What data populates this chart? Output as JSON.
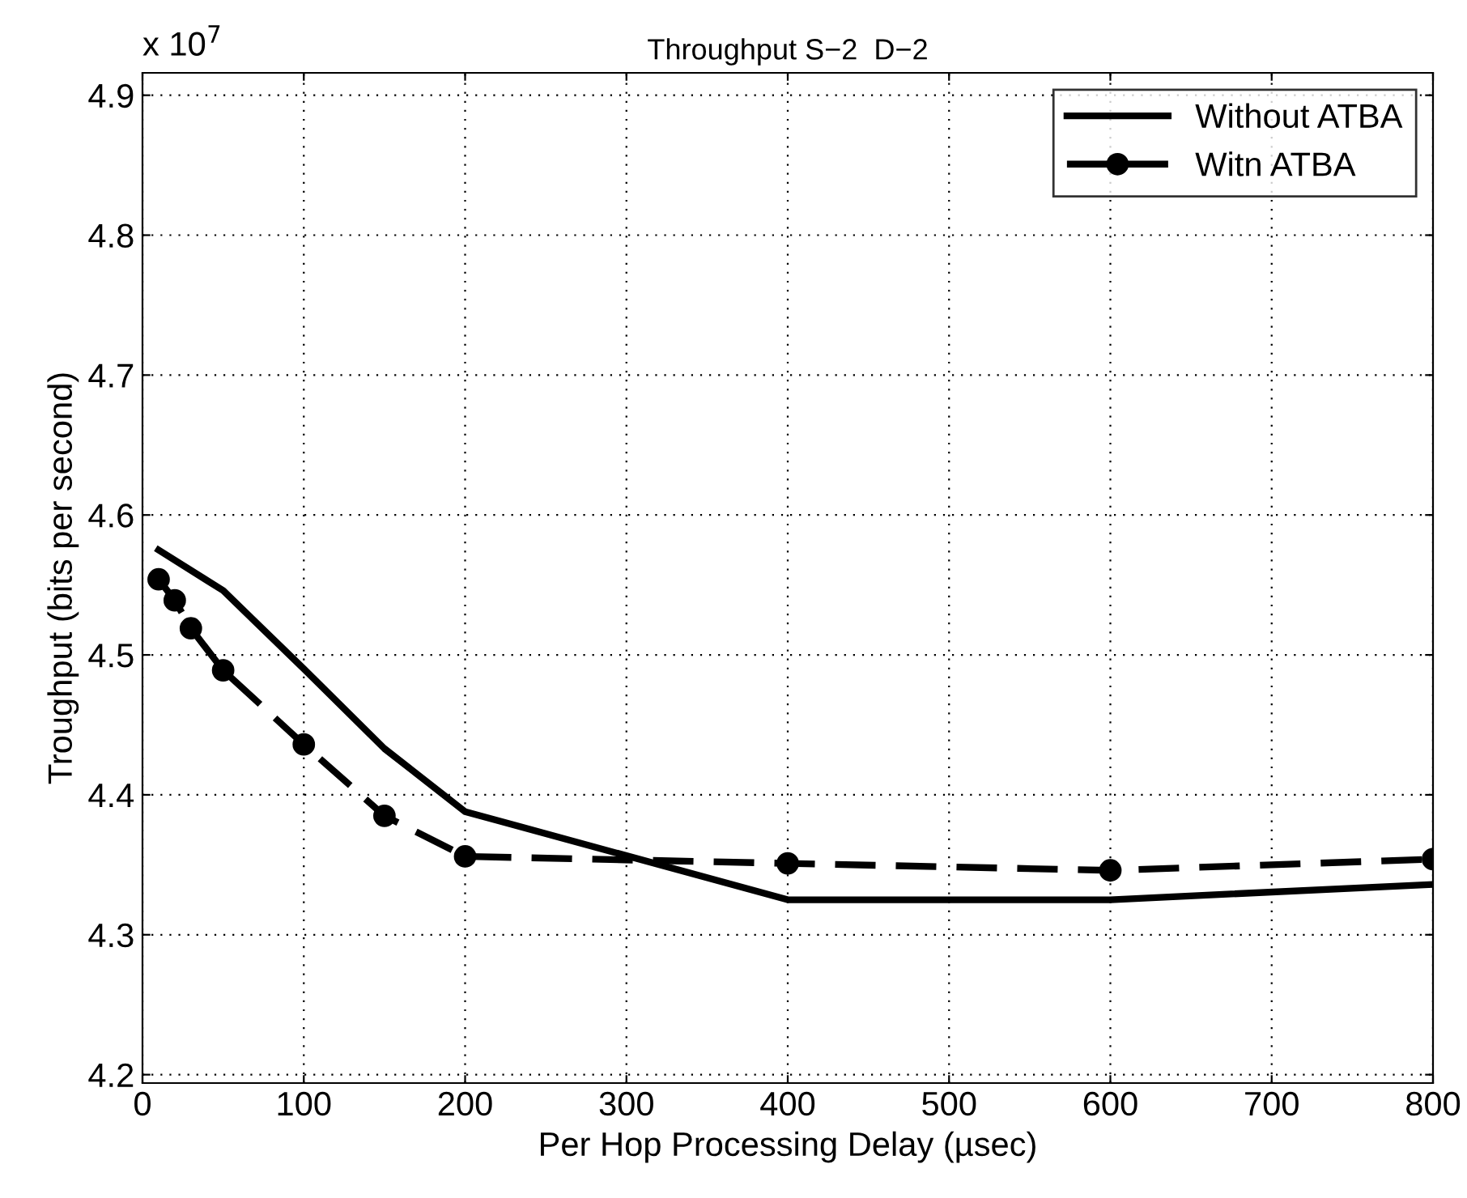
{
  "chart_data": {
    "type": "line",
    "title": "Throughput S−2  D−2",
    "xlabel": "Per Hop Processing Delay (µsec)",
    "ylabel": "Troughput (bits per second)",
    "annotations": [
      "x 10$^{7}$"
    ],
    "xlim": [
      0,
      800
    ],
    "xticks": [
      0,
      100,
      200,
      300,
      400,
      500,
      600,
      700,
      800
    ],
    "ylim": [
      4.194,
      4.916
    ],
    "yticks": [
      4.2,
      4.3,
      4.4,
      4.5,
      4.6,
      4.7,
      4.8,
      4.9
    ],
    "grid": true,
    "legend": "top right",
    "series": [
      {
        "name": "Without ATBA",
        "color": "#000000",
        "line_style": "solid",
        "marker": "none",
        "x": [
          10,
          50,
          100,
          150,
          200,
          400,
          600,
          800
        ],
        "values": [
          4.575,
          4.546,
          4.49,
          4.433,
          4.388,
          4.325,
          4.325,
          4.336
        ]
      },
      {
        "name": "Witn ATBA",
        "color": "#000000",
        "line_style": "dashed",
        "marker": "circle",
        "x": [
          10,
          20,
          30,
          50,
          100,
          150,
          200,
          400,
          600,
          800
        ],
        "values": [
          4.554,
          4.539,
          4.519,
          4.489,
          4.436,
          4.385,
          4.356,
          4.351,
          4.346,
          4.354
        ]
      }
    ]
  }
}
